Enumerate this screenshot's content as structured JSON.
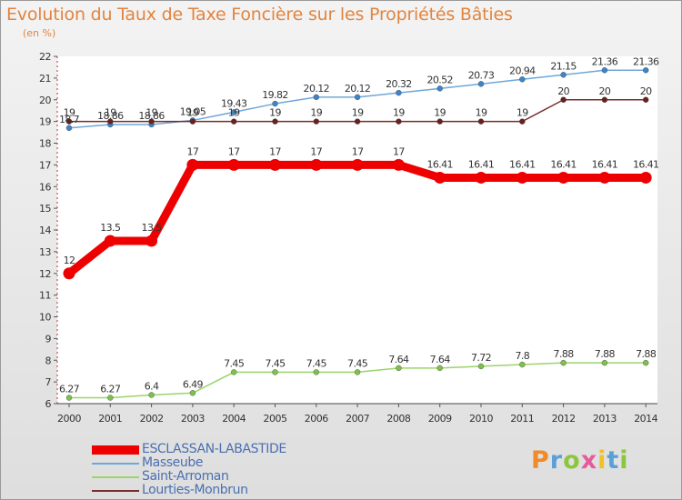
{
  "title": "Evolution du Taux de Taxe Foncière sur les Propriétés Bâties",
  "unit_label": "(en %)",
  "logo": {
    "p": "P",
    "r": "r",
    "o": "o",
    "x": "x",
    "i1": "i",
    "t": "t",
    "i2": "i"
  },
  "chart_data": {
    "type": "line",
    "title": "Evolution du Taux de Taxe Foncière sur les Propriétés Bâties",
    "ylabel": "(en %)",
    "xlabel": "",
    "ylim": [
      6,
      22
    ],
    "yticks": [
      6,
      7,
      8,
      9,
      10,
      11,
      12,
      13,
      14,
      15,
      16,
      17,
      18,
      19,
      20,
      21,
      22
    ],
    "grid": false,
    "legend_position": "bottom-left",
    "x": [
      "2000",
      "2001",
      "2002",
      "2003",
      "2004",
      "2005",
      "2006",
      "2007",
      "2008",
      "2009",
      "2010",
      "2011",
      "2012",
      "2013",
      "2014"
    ],
    "series": [
      {
        "name": "Masseube",
        "color": "#6fa7d9",
        "marker": "#3d84c8",
        "width": 1.5,
        "legend_width": 2,
        "values": [
          18.7,
          18.86,
          18.86,
          19.05,
          19.43,
          19.82,
          20.12,
          20.12,
          20.32,
          20.52,
          20.73,
          20.94,
          21.15,
          21.36,
          21.36
        ],
        "labels": [
          "18.7",
          "18.86",
          "18.86",
          "19.05",
          "19.43",
          "19.82",
          "20.12",
          "20.12",
          "20.32",
          "20.52",
          "20.73",
          "20.94",
          "21.15",
          "21.36",
          "21.36"
        ]
      },
      {
        "name": "Lourties-Monbrun",
        "color": "#7a2e2e",
        "marker": "#6b1f1f",
        "width": 1.5,
        "legend_width": 2,
        "values": [
          19,
          19,
          19,
          19,
          19,
          19,
          19,
          19,
          19,
          19,
          19,
          19,
          20,
          20,
          20
        ],
        "labels": [
          "19",
          "19",
          "19",
          "19",
          "19",
          "19",
          "19",
          "19",
          "19",
          "19",
          "19",
          "19",
          "20",
          "20",
          "20"
        ]
      },
      {
        "name": "ESCLASSAN-LABASTIDE",
        "color": "#ee0000",
        "marker": "#ee0000",
        "width": 9,
        "legend_width": 10,
        "values": [
          12,
          13.5,
          13.5,
          17,
          17,
          17,
          17,
          17,
          17,
          16.41,
          16.41,
          16.41,
          16.41,
          16.41,
          16.41
        ],
        "labels": [
          "12",
          "13.5",
          "13.5",
          "17",
          "17",
          "17",
          "17",
          "17",
          "17",
          "16.41",
          "16.41",
          "16.41",
          "16.41",
          "16.41",
          "16.41"
        ]
      },
      {
        "name": "Saint-Arroman",
        "color": "#9bd46a",
        "marker": "#7cc24a",
        "width": 1.5,
        "legend_width": 2,
        "values": [
          6.27,
          6.27,
          6.4,
          6.49,
          7.45,
          7.45,
          7.45,
          7.45,
          7.64,
          7.64,
          7.72,
          7.8,
          7.88,
          7.88,
          7.88
        ],
        "labels": [
          "6.27",
          "6.27",
          "6.4",
          "6.49",
          "7.45",
          "7.45",
          "7.45",
          "7.45",
          "7.64",
          "7.64",
          "7.72",
          "7.8",
          "7.88",
          "7.88",
          "7.88"
        ]
      }
    ],
    "legend_order": [
      "ESCLASSAN-LABASTIDE",
      "Masseube",
      "Saint-Arroman",
      "Lourties-Monbrun"
    ]
  }
}
